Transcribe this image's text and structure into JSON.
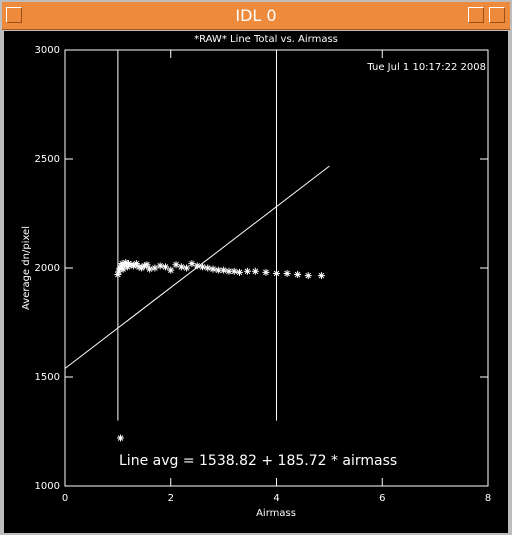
{
  "window": {
    "title": "IDL 0"
  },
  "chart_data": {
    "type": "scatter",
    "title": "*RAW* Line Total vs. Airmass",
    "timestamp": "Tue Jul  1 10:17:22 2008",
    "xlabel": "Airmass",
    "ylabel": "Average dn/pixel",
    "annotation": "Line avg = 1538.82 + 185.72 * airmass",
    "xlim": [
      0,
      8
    ],
    "xticks": [
      0,
      2,
      4,
      6,
      8
    ],
    "ylim": [
      1000,
      3000
    ],
    "yticks": [
      1000,
      1500,
      2000,
      2500,
      3000
    ],
    "color": "#ffffff",
    "x": [
      1.0,
      1.02,
      1.04,
      1.05,
      1.06,
      1.08,
      1.1,
      1.12,
      1.15,
      1.18,
      1.2,
      1.25,
      1.3,
      1.35,
      1.4,
      1.45,
      1.5,
      1.55,
      1.6,
      1.7,
      1.8,
      1.9,
      2.0,
      2.1,
      2.2,
      2.3,
      2.4,
      2.5,
      2.6,
      2.7,
      2.8,
      2.9,
      3.0,
      3.1,
      3.2,
      3.3,
      3.45,
      3.6,
      3.8,
      4.0,
      4.2,
      4.4,
      4.6,
      4.85
    ],
    "values": [
      1970,
      1985,
      2000,
      1220,
      2010,
      2020,
      1995,
      2015,
      2025,
      2005,
      2020,
      2015,
      2010,
      2020,
      2005,
      2000,
      2010,
      2015,
      1995,
      2000,
      2010,
      2005,
      1990,
      2015,
      2005,
      2000,
      2020,
      2010,
      2005,
      2000,
      1995,
      1990,
      1990,
      1985,
      1985,
      1980,
      1985,
      1985,
      1980,
      1975,
      1975,
      1970,
      1965,
      1965
    ],
    "fit": {
      "x": [
        0,
        5
      ],
      "values": [
        1538.82,
        2467.42
      ]
    },
    "vlines": [
      1,
      4
    ],
    "vline_range": [
      1300,
      3000
    ]
  }
}
